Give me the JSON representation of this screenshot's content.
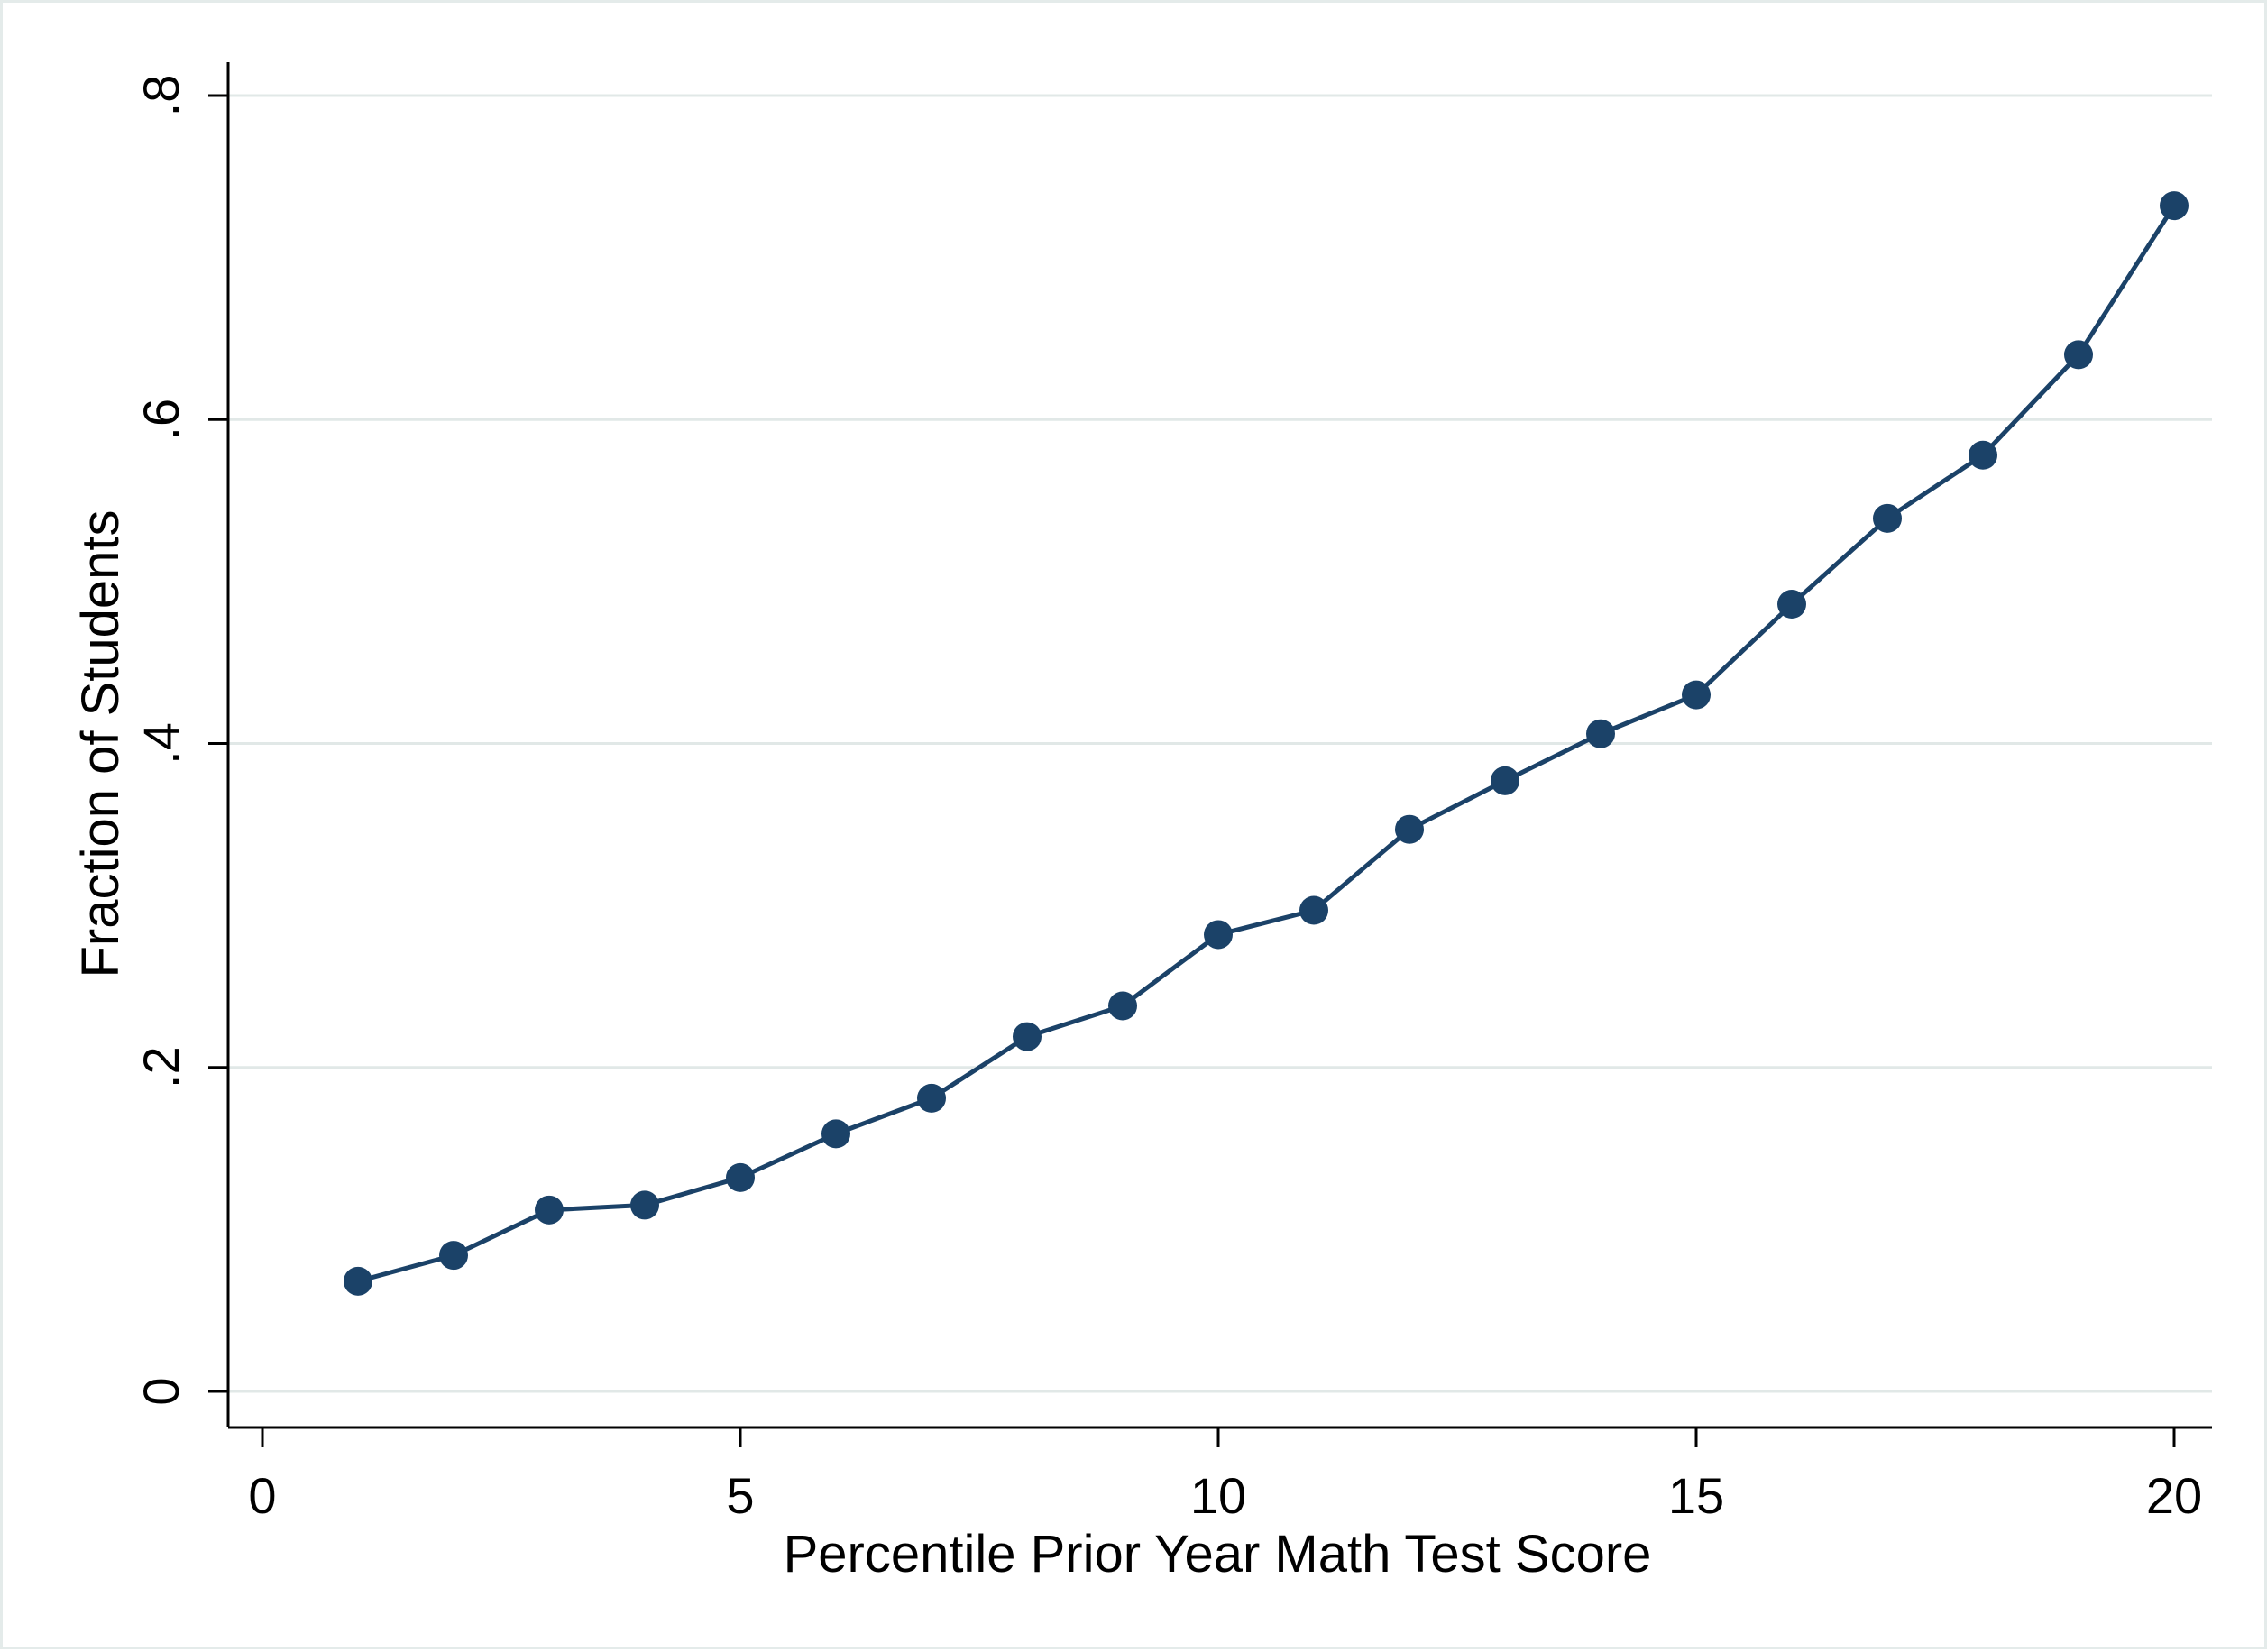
{
  "chart_data": {
    "type": "line",
    "title": "",
    "xlabel": "Percentile Prior Year Math Test Score",
    "ylabel": "Fraction of Students",
    "xlim": [
      0,
      20
    ],
    "ylim": [
      0,
      0.8
    ],
    "x_ticks": [
      0,
      5,
      10,
      15,
      20
    ],
    "x_tick_labels": [
      "0",
      "5",
      "10",
      "15",
      "20"
    ],
    "y_ticks": [
      0,
      0.2,
      0.4,
      0.6,
      0.8
    ],
    "y_tick_labels": [
      "0",
      ".2",
      ".4",
      ".6",
      ".8"
    ],
    "grid": "horizontal",
    "legend": "none",
    "series": [
      {
        "x": [
          1,
          2,
          3,
          4,
          5,
          6,
          7,
          8,
          9,
          10,
          11,
          12,
          13,
          14,
          15,
          16,
          17,
          18,
          19,
          20
        ],
        "y": [
          0.068,
          0.084,
          0.112,
          0.115,
          0.132,
          0.159,
          0.181,
          0.219,
          0.238,
          0.282,
          0.297,
          0.347,
          0.377,
          0.406,
          0.43,
          0.486,
          0.539,
          0.578,
          0.64,
          0.732
        ],
        "color": "#1b4268",
        "marker": "circle"
      }
    ]
  }
}
